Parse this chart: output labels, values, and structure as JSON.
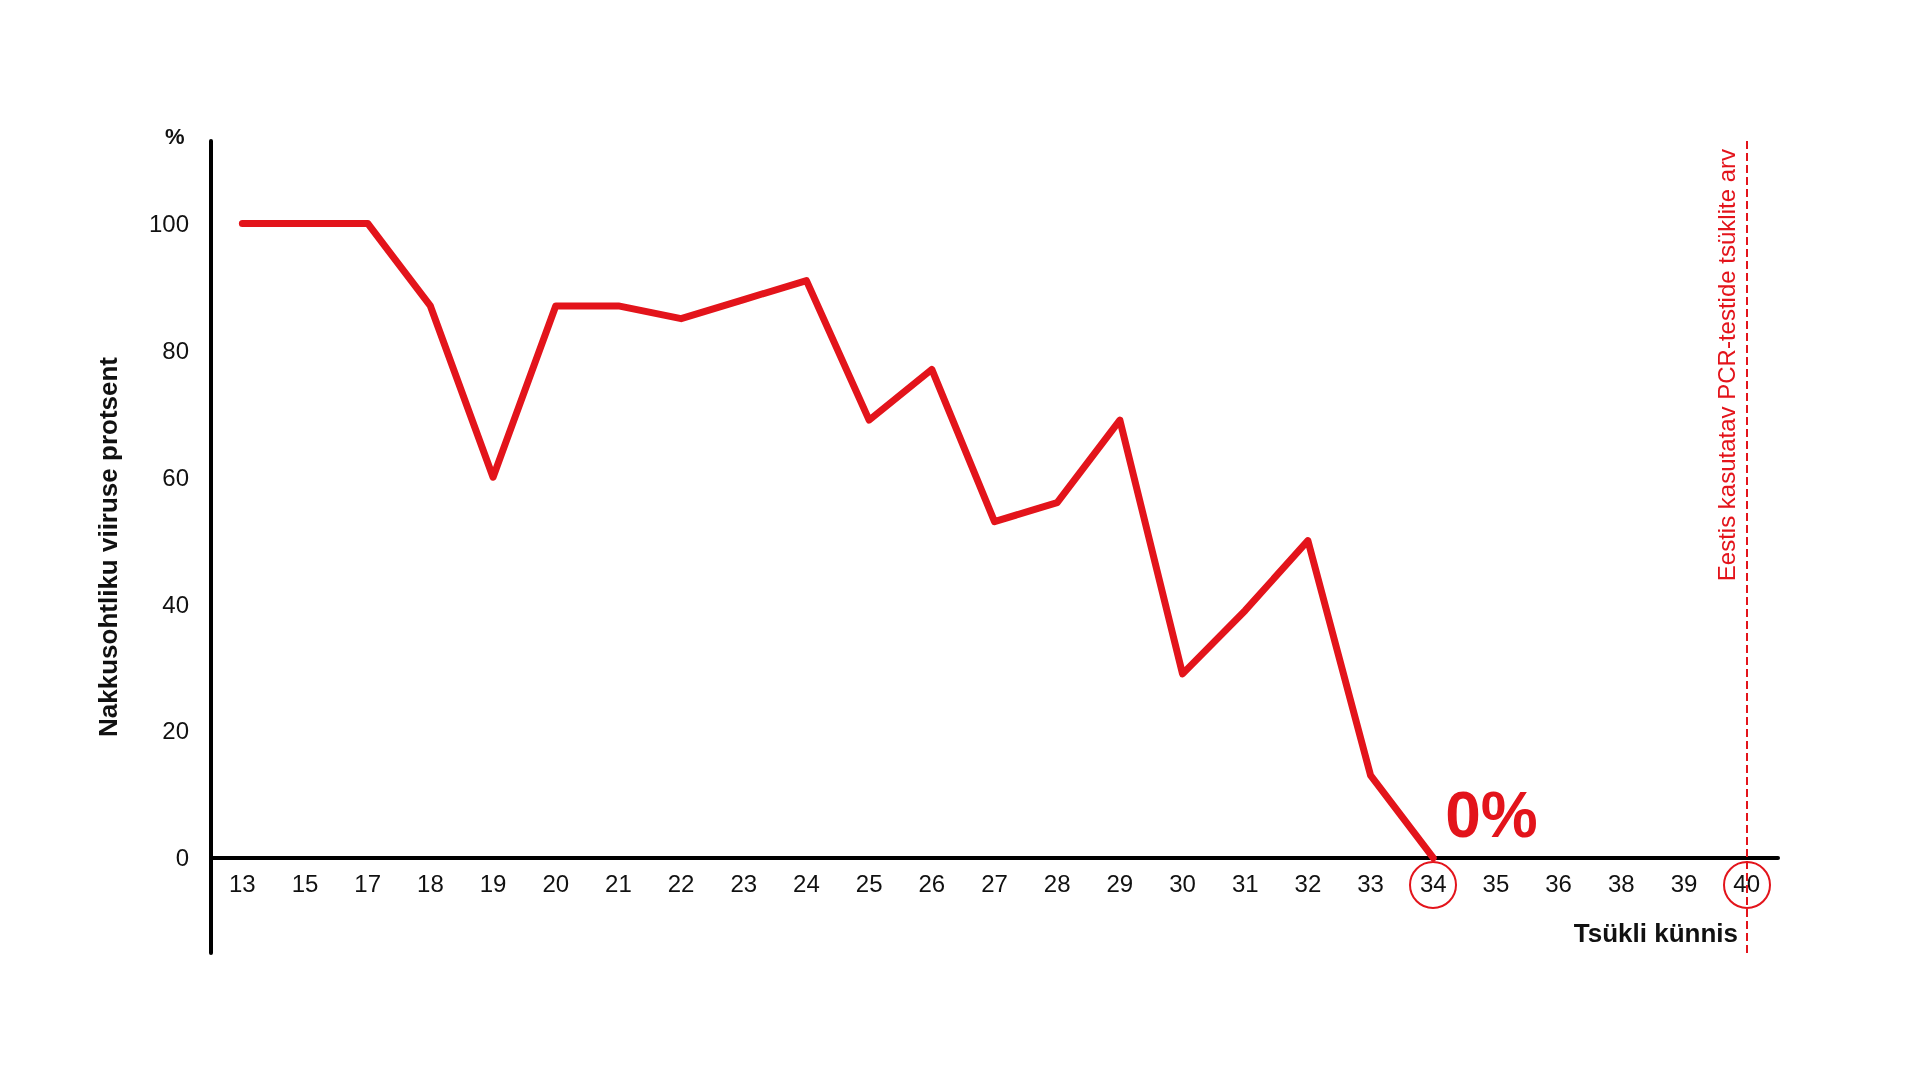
{
  "chart_data": {
    "type": "line",
    "xlabel": "Tsükli künnis",
    "ylabel": "Nakkusohtliku viiruse protsent",
    "categories": [
      "13",
      "15",
      "17",
      "18",
      "19",
      "20",
      "21",
      "22",
      "23",
      "24",
      "25",
      "26",
      "27",
      "28",
      "29",
      "30",
      "31",
      "32",
      "33",
      "34",
      "35",
      "36",
      "38",
      "39",
      "40"
    ],
    "series": [
      {
        "color": "#e3141b",
        "values": [
          100,
          100,
          100,
          87,
          60,
          87,
          87,
          85,
          88,
          91,
          69,
          77,
          53,
          56,
          69,
          29,
          39,
          50,
          13,
          0,
          null,
          null,
          null,
          null,
          null
        ]
      }
    ],
    "ylim": [
      -15,
      113
    ],
    "yticks": [
      0,
      20,
      40,
      60,
      80,
      100
    ],
    "grid": false,
    "marker": "none",
    "line_style": "solid",
    "ref_lines": [
      {
        "axis": "x",
        "value": "40",
        "label": "Eestis kasutatav PCR-testide tsüklite arv",
        "color": "#e3141b",
        "line_style": "dashed"
      }
    ],
    "annotations": [
      {
        "text": "0%",
        "x": "34",
        "y": 0
      },
      "%"
    ]
  }
}
